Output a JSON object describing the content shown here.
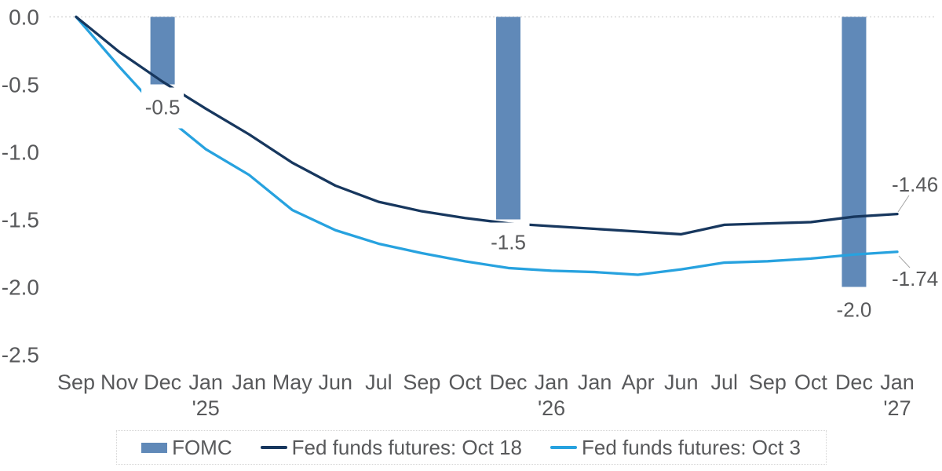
{
  "chart_data": {
    "type": "combo-bar-line",
    "title": "",
    "xlabel": "",
    "ylabel": "",
    "ylim": [
      -2.5,
      0.0
    ],
    "grid": "dotted gridline at 0.0 only",
    "legend_position": "bottom-center",
    "yticks": [
      "0.0",
      "-0.5",
      "-1.0",
      "-1.5",
      "-2.0",
      "-2.5"
    ],
    "ytick_values": [
      0.0,
      -0.5,
      -1.0,
      -1.5,
      -2.0,
      -2.5
    ],
    "categories": [
      "Sep",
      "Nov",
      "Dec",
      "Jan '25",
      "Jan",
      "May",
      "Jun",
      "Jul",
      "Sep",
      "Oct",
      "Dec",
      "Jan '26",
      "Jan",
      "Apr",
      "Jun",
      "Jul",
      "Sep",
      "Oct",
      "Dec",
      "Jan '27"
    ],
    "x_tick_months": [
      "Sep",
      "Nov",
      "Dec",
      "Jan",
      "Jan",
      "May",
      "Jun",
      "Jul",
      "Sep",
      "Oct",
      "Dec",
      "Jan",
      "Jan",
      "Apr",
      "Jun",
      "Jul",
      "Sep",
      "Oct",
      "Dec",
      "Jan"
    ],
    "x_tick_years": [
      "",
      "",
      "",
      "'25",
      "",
      "",
      "",
      "",
      "",
      "",
      "",
      "'26",
      "",
      "",
      "",
      "",
      "",
      "",
      "",
      "'27"
    ],
    "series": [
      {
        "name": "FOMC",
        "type": "bar",
        "color": "#6089b8",
        "values": [
          null,
          null,
          -0.5,
          null,
          null,
          null,
          null,
          null,
          null,
          null,
          -1.5,
          null,
          null,
          null,
          null,
          null,
          null,
          null,
          -2.0,
          null
        ],
        "data_labels": [
          null,
          null,
          "-0.5",
          null,
          null,
          null,
          null,
          null,
          null,
          null,
          "-1.5",
          null,
          null,
          null,
          null,
          null,
          null,
          null,
          "-2.0",
          null
        ]
      },
      {
        "name": "Fed funds futures: Oct 18",
        "type": "line",
        "color": "#17375e",
        "values": [
          0.0,
          -0.26,
          -0.48,
          -0.68,
          -0.87,
          -1.08,
          -1.25,
          -1.37,
          -1.44,
          -1.49,
          -1.53,
          -1.55,
          -1.57,
          -1.59,
          -1.61,
          -1.54,
          -1.53,
          -1.52,
          -1.48,
          -1.46
        ],
        "end_label": "-1.46"
      },
      {
        "name": "Fed funds futures: Oct 3",
        "type": "line",
        "color": "#27a2df",
        "values": [
          0.0,
          -0.37,
          -0.72,
          -0.98,
          -1.17,
          -1.43,
          -1.58,
          -1.68,
          -1.75,
          -1.81,
          -1.86,
          -1.88,
          -1.89,
          -1.91,
          -1.87,
          -1.82,
          -1.81,
          -1.79,
          -1.76,
          -1.74
        ],
        "end_label": "-1.74"
      }
    ]
  },
  "legend": {
    "items": [
      {
        "label": "FOMC",
        "swatch": "bar",
        "color": "#6089b8"
      },
      {
        "label": "Fed funds futures: Oct 18",
        "swatch": "line",
        "color": "#17375e"
      },
      {
        "label": "Fed funds futures: Oct 3",
        "swatch": "line",
        "color": "#27a2df"
      }
    ]
  },
  "colors": {
    "axis_text": "#58595b",
    "gridline": "#d9d9d9",
    "leader_line": "#a6a6a6",
    "background": "#ffffff"
  }
}
